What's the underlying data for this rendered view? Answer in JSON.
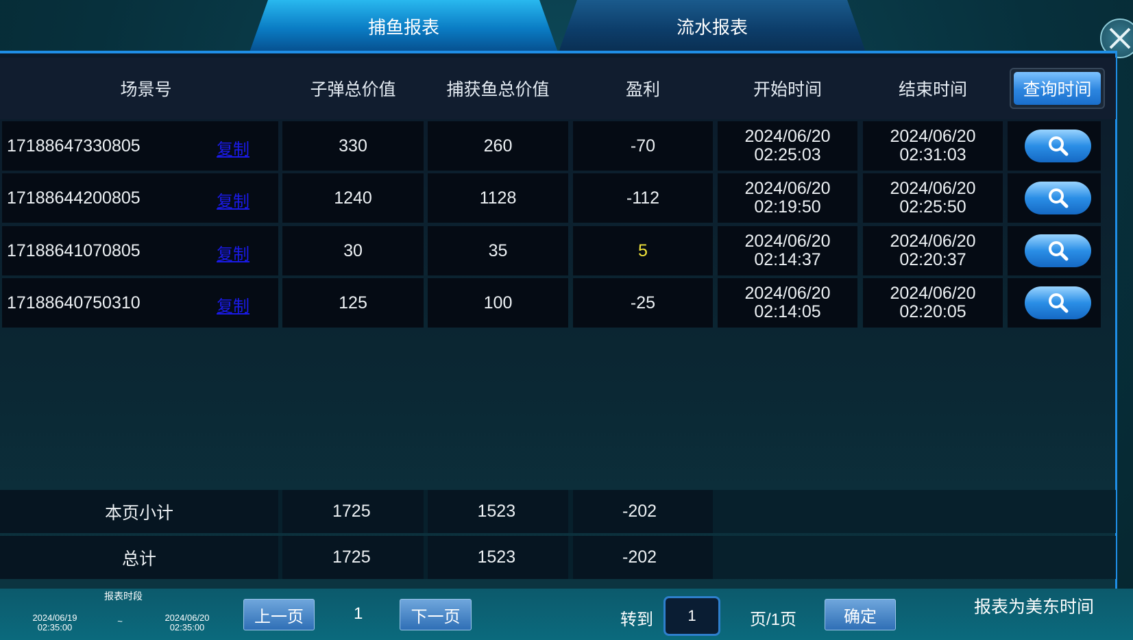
{
  "tabs": [
    {
      "label": "捕鱼报表",
      "active": true
    },
    {
      "label": "流水报表",
      "active": false
    }
  ],
  "headers": [
    "场景号",
    "子弹总价值",
    "捕获鱼总价值",
    "盈利",
    "开始时间",
    "结束时间"
  ],
  "query_time_button": "查询时间",
  "copy_label": "复制",
  "rows": [
    {
      "scene": "17188647330805",
      "bullet": "330",
      "catch": "260",
      "profit": "-70",
      "start_date": "2024/06/20",
      "start_time": "02:25:03",
      "end_date": "2024/06/20",
      "end_time": "02:31:03"
    },
    {
      "scene": "17188644200805",
      "bullet": "1240",
      "catch": "1128",
      "profit": "-112",
      "start_date": "2024/06/20",
      "start_time": "02:19:50",
      "end_date": "2024/06/20",
      "end_time": "02:25:50"
    },
    {
      "scene": "17188641070805",
      "bullet": "30",
      "catch": "35",
      "profit": "5",
      "start_date": "2024/06/20",
      "start_time": "02:14:37",
      "end_date": "2024/06/20",
      "end_time": "02:20:37"
    },
    {
      "scene": "17188640750310",
      "bullet": "125",
      "catch": "100",
      "profit": "-25",
      "start_date": "2024/06/20",
      "start_time": "02:14:05",
      "end_date": "2024/06/20",
      "end_time": "02:20:05"
    }
  ],
  "summary": [
    {
      "label": "本页小计",
      "bullet": "1725",
      "catch": "1523",
      "profit": "-202"
    },
    {
      "label": "总计",
      "bullet": "1725",
      "catch": "1523",
      "profit": "-202"
    }
  ],
  "footer": {
    "range_label": "报表时段",
    "from_date": "2024/06/19",
    "from_time": "02:35:00",
    "separator": "~",
    "to_date": "2024/06/20",
    "to_time": "02:35:00",
    "prev": "上一页",
    "page": "1",
    "next": "下一页",
    "goto": "转到",
    "goto_value": "1",
    "page_total": "页/1页",
    "confirm": "确定",
    "timezone_note": "报表为美东时间"
  },
  "colors": {
    "positive_profit": "#f2e43a",
    "copy_link": "#1a1ae8",
    "accent": "#1f8ee6"
  }
}
